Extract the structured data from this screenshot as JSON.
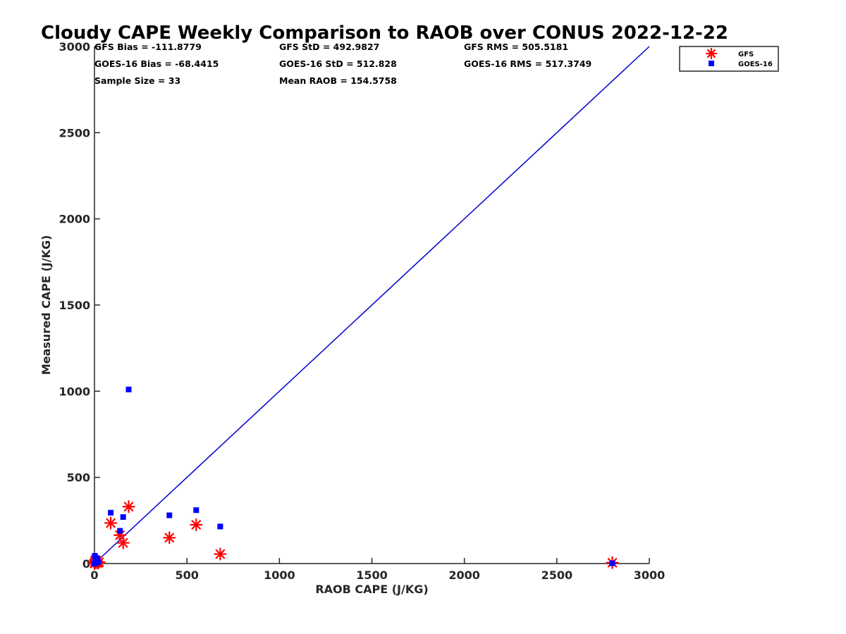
{
  "chart_data": {
    "type": "scatter",
    "title": "Cloudy CAPE Weekly Comparison to RAOB over CONUS 2022-12-22",
    "xlabel": "RAOB CAPE (J/KG)",
    "ylabel": "Measured CAPE (J/KG)",
    "xlim": [
      0,
      3000
    ],
    "ylim": [
      0,
      3000
    ],
    "xticks": [
      0,
      500,
      1000,
      1500,
      2000,
      2500,
      3000
    ],
    "yticks": [
      0,
      500,
      1000,
      1500,
      2000,
      2500,
      3000
    ],
    "grid": false,
    "legend_position": "top-right (outside plot)",
    "stats": [
      "GFS Bias = -111.8779",
      "GOES-16 Bias = -68.4415",
      "Sample Size = 33",
      "GFS StD = 492.9827",
      "GOES-16 StD = 512.828",
      "Mean RAOB = 154.5758",
      "GFS RMS = 505.5181",
      "GOES-16 RMS = 517.3749"
    ],
    "reference_line": {
      "label": "",
      "points": [
        [
          0,
          0
        ],
        [
          3000,
          3000
        ]
      ],
      "color": "#0000cc"
    },
    "series": [
      {
        "name": "GFS",
        "marker": "asterisk",
        "color": "#ff0000",
        "points": [
          [
            0,
            0
          ],
          [
            2,
            10
          ],
          [
            5,
            20
          ],
          [
            8,
            5
          ],
          [
            12,
            15
          ],
          [
            18,
            3
          ],
          [
            25,
            8
          ],
          [
            88,
            235
          ],
          [
            138,
            165
          ],
          [
            155,
            120
          ],
          [
            185,
            330
          ],
          [
            405,
            150
          ],
          [
            550,
            225
          ],
          [
            680,
            55
          ],
          [
            2800,
            5
          ]
        ]
      },
      {
        "name": "GOES-16",
        "marker": "square",
        "color": "#0000ff",
        "points": [
          [
            0,
            0
          ],
          [
            2,
            45
          ],
          [
            5,
            35
          ],
          [
            8,
            25
          ],
          [
            10,
            15
          ],
          [
            12,
            5
          ],
          [
            15,
            30
          ],
          [
            20,
            10
          ],
          [
            88,
            295
          ],
          [
            138,
            190
          ],
          [
            155,
            270
          ],
          [
            185,
            1010
          ],
          [
            405,
            280
          ],
          [
            550,
            310
          ],
          [
            680,
            215
          ],
          [
            2800,
            2
          ]
        ]
      }
    ]
  }
}
